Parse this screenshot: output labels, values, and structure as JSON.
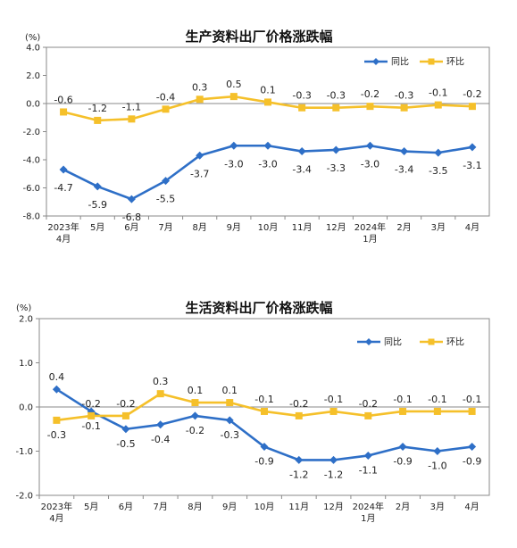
{
  "chart_data": [
    {
      "type": "line",
      "title": "生产资料出厂价格涨跌幅",
      "unit": "(%)",
      "ylim": [
        -8.0,
        4.0
      ],
      "yticks": [
        -8.0,
        -6.0,
        -4.0,
        -2.0,
        0.0,
        2.0,
        4.0
      ],
      "ytick_labels": [
        "-8.0",
        "-6.0",
        "-4.0",
        "-2.0",
        "0.0",
        "2.0",
        "4.0"
      ],
      "categories": [
        "2023年4月",
        "5月",
        "6月",
        "7月",
        "8月",
        "9月",
        "10月",
        "11月",
        "12月",
        "2024年1月",
        "2月",
        "3月",
        "4月"
      ],
      "category_lines": [
        [
          "2023年",
          "4月"
        ],
        [
          "5月"
        ],
        [
          "6月"
        ],
        [
          "7月"
        ],
        [
          "8月"
        ],
        [
          "9月"
        ],
        [
          "10月"
        ],
        [
          "11月"
        ],
        [
          "12月"
        ],
        [
          "2024年",
          "1月"
        ],
        [
          "2月"
        ],
        [
          "3月"
        ],
        [
          "4月"
        ]
      ],
      "legend_position": "top-right",
      "grid": false,
      "series": [
        {
          "name": "同比",
          "color": "#2e6fc7",
          "marker": "diamond",
          "values": [
            -4.7,
            -5.9,
            -6.8,
            -5.5,
            -3.7,
            -3.0,
            -3.0,
            -3.4,
            -3.3,
            -3.0,
            -3.4,
            -3.5,
            -3.1
          ],
          "labels": [
            "-4.7",
            "-5.9",
            "-6.8",
            "-5.5",
            "-3.7",
            "-3.0",
            "-3.0",
            "-3.4",
            "-3.3",
            "-3.0",
            "-3.4",
            "-3.5",
            "-3.1"
          ]
        },
        {
          "name": "环比",
          "color": "#f5c02a",
          "marker": "square",
          "values": [
            -0.6,
            -1.2,
            -1.1,
            -0.4,
            0.3,
            0.5,
            0.1,
            -0.3,
            -0.3,
            -0.2,
            -0.3,
            -0.1,
            -0.2
          ],
          "labels": [
            "-0.6",
            "-1.2",
            "-1.1",
            "-0.4",
            "0.3",
            "0.5",
            "0.1",
            "-0.3",
            "-0.3",
            "-0.2",
            "-0.3",
            "-0.1",
            "-0.2"
          ]
        }
      ]
    },
    {
      "type": "line",
      "title": "生活资料出厂价格涨跌幅",
      "unit": "(%)",
      "ylim": [
        -2.0,
        2.0
      ],
      "yticks": [
        -2.0,
        -1.0,
        0.0,
        1.0,
        2.0
      ],
      "ytick_labels": [
        "-2.0",
        "-1.0",
        "0.0",
        "1.0",
        "2.0"
      ],
      "categories": [
        "2023年4月",
        "5月",
        "6月",
        "7月",
        "8月",
        "9月",
        "10月",
        "11月",
        "12月",
        "2024年1月",
        "2月",
        "3月",
        "4月"
      ],
      "category_lines": [
        [
          "2023年",
          "4月"
        ],
        [
          "5月"
        ],
        [
          "6月"
        ],
        [
          "7月"
        ],
        [
          "8月"
        ],
        [
          "9月"
        ],
        [
          "10月"
        ],
        [
          "11月"
        ],
        [
          "12月"
        ],
        [
          "2024年",
          "1月"
        ],
        [
          "2月"
        ],
        [
          "3月"
        ],
        [
          "4月"
        ]
      ],
      "legend_position": "top-right",
      "grid": false,
      "series": [
        {
          "name": "同比",
          "color": "#2e6fc7",
          "marker": "diamond",
          "values": [
            0.4,
            -0.1,
            -0.5,
            -0.4,
            -0.2,
            -0.3,
            -0.9,
            -1.2,
            -1.2,
            -1.1,
            -0.9,
            -1.0,
            -0.9
          ],
          "labels": [
            "0.4",
            "-0.1",
            "-0.5",
            "-0.4",
            "-0.2",
            "-0.3",
            "-0.9",
            "-1.2",
            "-1.2",
            "-1.1",
            "-0.9",
            "-1.0",
            "-0.9"
          ]
        },
        {
          "name": "环比",
          "color": "#f5c02a",
          "marker": "square",
          "values": [
            -0.3,
            -0.2,
            -0.2,
            0.3,
            0.1,
            0.1,
            -0.1,
            -0.2,
            -0.1,
            -0.2,
            -0.1,
            -0.1,
            -0.1
          ],
          "labels": [
            "-0.3",
            "-0.2",
            "-0.2",
            "0.3",
            "0.1",
            "0.1",
            "-0.1",
            "-0.2",
            "-0.1",
            "-0.2",
            "-0.1",
            "-0.1",
            "-0.1"
          ]
        }
      ]
    }
  ]
}
